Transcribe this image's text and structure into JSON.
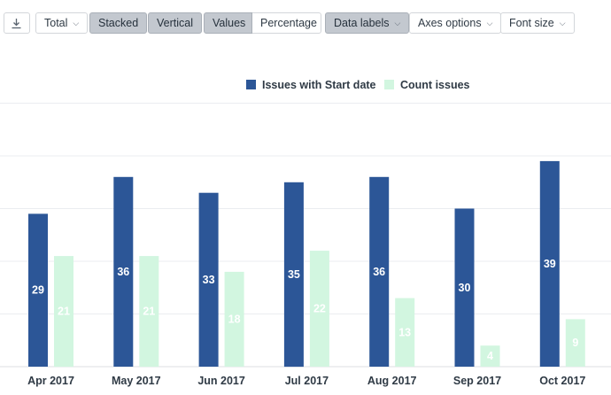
{
  "toolbar": {
    "download_icon": "download-icon",
    "total_label": "Total",
    "stacked_label": "Stacked",
    "vertical_label": "Vertical",
    "values_label": "Values",
    "percentage_label": "Percentage",
    "data_labels_label": "Data labels",
    "axes_options_label": "Axes options",
    "font_size_label": "Font size"
  },
  "chart_data": {
    "type": "bar",
    "categories": [
      "Apr 2017",
      "May 2017",
      "Jun 2017",
      "Jul 2017",
      "Aug 2017",
      "Sep 2017",
      "Oct 2017"
    ],
    "series": [
      {
        "name": "Issues with Start date",
        "values": [
          29,
          36,
          33,
          35,
          36,
          30,
          39
        ],
        "color": "#2c5697",
        "label_color": "#ffffff"
      },
      {
        "name": "Count issues",
        "values": [
          21,
          21,
          18,
          22,
          13,
          4,
          9
        ],
        "color": "#d2f6e0",
        "label_color": "#ffffff"
      }
    ],
    "legend_position": "top",
    "grid": true,
    "data_labels": true
  }
}
